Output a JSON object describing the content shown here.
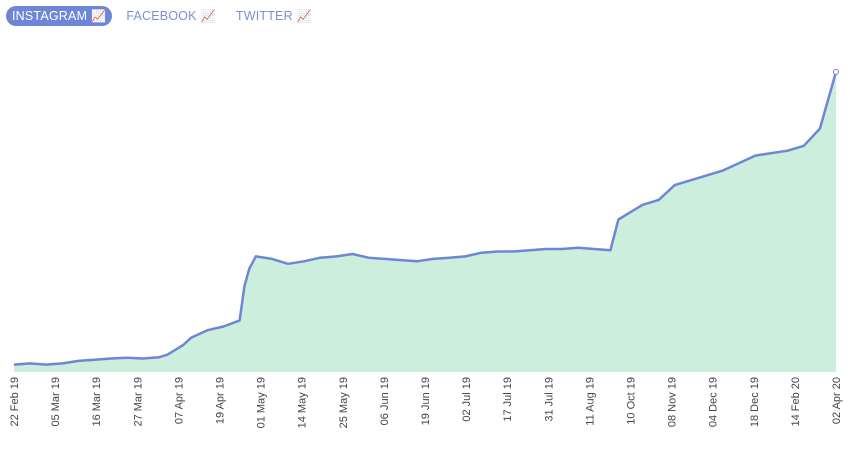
{
  "tabs": [
    {
      "label": "INSTAGRAM",
      "icon": "📈",
      "active": true
    },
    {
      "label": "FACEBOOK",
      "icon": "📈",
      "active": false
    },
    {
      "label": "TWITTER",
      "icon": "📈",
      "active": false
    }
  ],
  "colors": {
    "line": "#6f86d6",
    "fill": "#cdeedd",
    "active_tab_bg": "#6f86d6",
    "tab_text": "#7b8fd4"
  },
  "chart_data": {
    "type": "area",
    "title": "",
    "xlabel": "",
    "ylabel": "",
    "grid": false,
    "legend": "none",
    "x_ticks": [
      "22 Feb 19",
      "05 Mar 19",
      "16 Mar 19",
      "27 Mar 19",
      "07 Apr 19",
      "19 Apr 19",
      "01 May 19",
      "14 May 19",
      "25 May 19",
      "06 Jun 19",
      "19 Jun 19",
      "02 Jul 19",
      "17 Jul 19",
      "31 Jul 19",
      "11 Aug 19",
      "10 Oct 19",
      "08 Nov 19",
      "04 Dec 19",
      "18 Dec 19",
      "14 Feb 20",
      "02 Apr 20"
    ],
    "ylim": [
      0,
      100
    ],
    "series": [
      {
        "values": [
          [
            0,
            3
          ],
          [
            1,
            3.5
          ],
          [
            2,
            3
          ],
          [
            3,
            3.5
          ],
          [
            4,
            4.5
          ],
          [
            5,
            5
          ],
          [
            6,
            5.5
          ],
          [
            7,
            5.8
          ],
          [
            8,
            5.5
          ],
          [
            9,
            6
          ],
          [
            9.5,
            7
          ],
          [
            10,
            9
          ],
          [
            10.5,
            11
          ],
          [
            11,
            14
          ],
          [
            12,
            17
          ],
          [
            13,
            18.5
          ],
          [
            14,
            21
          ],
          [
            14.3,
            35
          ],
          [
            14.6,
            42
          ],
          [
            15,
            47
          ],
          [
            16,
            46
          ],
          [
            17,
            44
          ],
          [
            18,
            45
          ],
          [
            19,
            46.5
          ],
          [
            20,
            47
          ],
          [
            21,
            48
          ],
          [
            22,
            46.5
          ],
          [
            23,
            46
          ],
          [
            24,
            45.5
          ],
          [
            25,
            45
          ],
          [
            26,
            46
          ],
          [
            27,
            46.5
          ],
          [
            28,
            47
          ],
          [
            29,
            48.5
          ],
          [
            30,
            49
          ],
          [
            31,
            49
          ],
          [
            32,
            49.5
          ],
          [
            33,
            50
          ],
          [
            34,
            50
          ],
          [
            35,
            50.5
          ],
          [
            36,
            50
          ],
          [
            37,
            49.5
          ],
          [
            37.5,
            62
          ],
          [
            38,
            64
          ],
          [
            39,
            68
          ],
          [
            40,
            70
          ],
          [
            41,
            76
          ],
          [
            42,
            78
          ],
          [
            43,
            80
          ],
          [
            44,
            82
          ],
          [
            45,
            85
          ],
          [
            46,
            88
          ],
          [
            47,
            89
          ],
          [
            48,
            90
          ],
          [
            49,
            92
          ],
          [
            50,
            99
          ],
          [
            51,
            122
          ]
        ]
      }
    ]
  }
}
